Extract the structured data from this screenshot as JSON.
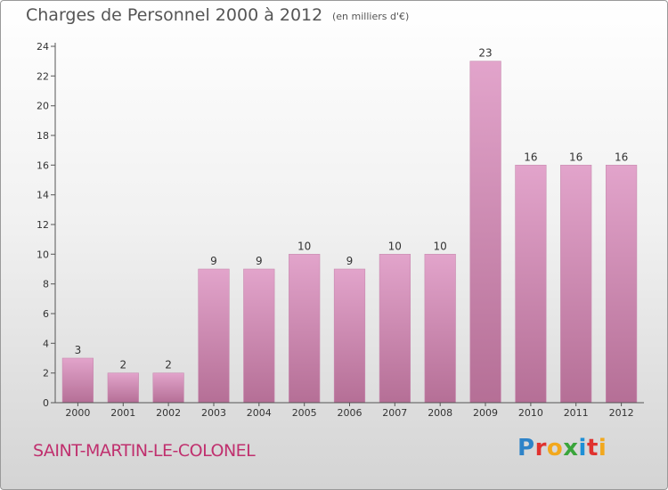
{
  "header": {
    "title": "Charges de Personnel 2000 à 2012",
    "unit": "(en milliers d'€)"
  },
  "footer": {
    "commune": "SAINT-MARTIN-LE-COLONEL",
    "logo": "Proxiti"
  },
  "colors": {
    "bar_top": "#e2a4cb",
    "bar_bottom": "#b56f96",
    "axis": "#555555",
    "text": "#333333"
  },
  "chart_data": {
    "type": "bar",
    "title": "Charges de Personnel 2000 à 2012",
    "xlabel": "",
    "ylabel": "",
    "categories": [
      "2000",
      "2001",
      "2002",
      "2003",
      "2004",
      "2005",
      "2006",
      "2007",
      "2008",
      "2009",
      "2010",
      "2011",
      "2012"
    ],
    "values": [
      3,
      2,
      2,
      9,
      9,
      10,
      9,
      10,
      10,
      23,
      16,
      16,
      16
    ],
    "ylim": [
      0,
      24
    ],
    "yticks": [
      0,
      2,
      4,
      6,
      8,
      10,
      12,
      14,
      16,
      18,
      20,
      22,
      24
    ],
    "grid": false,
    "legend": "none"
  }
}
